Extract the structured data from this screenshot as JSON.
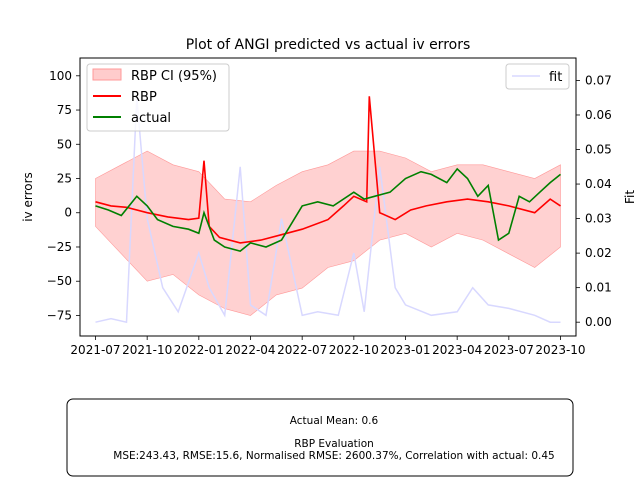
{
  "chart_data": {
    "type": "line",
    "title": "Plot of ANGI predicted vs actual iv errors",
    "ylabel_left": "iv errors",
    "ylabel_right": "Fit",
    "x_ticks": [
      "2021-07",
      "2021-10",
      "2022-01",
      "2022-04",
      "2022-07",
      "2022-10",
      "2023-01",
      "2023-04",
      "2023-07",
      "2023-10"
    ],
    "y_left_ticks": [
      -75,
      -50,
      -25,
      0,
      25,
      50,
      75,
      100
    ],
    "y_right_ticks": [
      "0.00",
      "0.01",
      "0.02",
      "0.03",
      "0.04",
      "0.05",
      "0.06",
      "0.07"
    ],
    "ylim_left": [
      -90,
      113
    ],
    "ylim_right": [
      -0.004,
      0.0765
    ],
    "xlim": [
      -0.3,
      9.3
    ],
    "legend_left": {
      "position": "upper left",
      "entries": [
        "RBP CI (95%)",
        "RBP",
        "actual"
      ]
    },
    "legend_right": {
      "position": "upper right",
      "entries": [
        "fit"
      ]
    },
    "colors": {
      "ci": "#ffcccc",
      "ci_edge": "#ff9999",
      "rbp": "#ff0000",
      "actual": "#008000",
      "fit": "#d8d8ff"
    },
    "series": [
      {
        "name": "RBP",
        "x": [
          0.0,
          0.3,
          0.6,
          1.0,
          1.4,
          1.8,
          2.0,
          2.1,
          2.2,
          2.4,
          2.8,
          3.2,
          3.6,
          4.0,
          4.5,
          4.8,
          5.0,
          5.25,
          5.3,
          5.5,
          5.8,
          6.1,
          6.4,
          6.8,
          7.2,
          7.6,
          8.0,
          8.5,
          8.8,
          9.0
        ],
        "values": [
          8,
          5,
          4,
          0,
          -3,
          -5,
          -4,
          38,
          -10,
          -18,
          -22,
          -20,
          -16,
          -12,
          -5,
          5,
          12,
          8,
          85,
          0,
          -5,
          2,
          5,
          8,
          10,
          8,
          5,
          0,
          10,
          5
        ]
      },
      {
        "name": "actual",
        "x": [
          0.0,
          0.25,
          0.5,
          0.8,
          1.0,
          1.2,
          1.5,
          1.8,
          2.0,
          2.1,
          2.3,
          2.5,
          2.8,
          3.0,
          3.3,
          3.6,
          4.0,
          4.3,
          4.6,
          5.0,
          5.2,
          5.4,
          5.7,
          6.0,
          6.3,
          6.5,
          6.8,
          7.0,
          7.2,
          7.4,
          7.6,
          7.8,
          8.0,
          8.2,
          8.4,
          8.6,
          8.8,
          9.0
        ],
        "values": [
          5,
          2,
          -2,
          12,
          5,
          -5,
          -10,
          -12,
          -15,
          0,
          -20,
          -25,
          -28,
          -22,
          -25,
          -20,
          5,
          8,
          5,
          15,
          10,
          12,
          15,
          25,
          30,
          28,
          22,
          32,
          25,
          12,
          20,
          -20,
          -15,
          12,
          8,
          15,
          22,
          28
        ]
      },
      {
        "name": "RBP CI (95%)",
        "x": [
          0.0,
          0.5,
          1.0,
          1.5,
          2.0,
          2.5,
          3.0,
          3.5,
          4.0,
          4.5,
          5.0,
          5.5,
          6.0,
          6.5,
          7.0,
          7.5,
          8.0,
          8.5,
          9.0
        ],
        "lower": [
          -10,
          -30,
          -50,
          -45,
          -60,
          -70,
          -75,
          -60,
          -55,
          -40,
          -35,
          -20,
          -15,
          -25,
          -15,
          -20,
          -30,
          -40,
          -25
        ],
        "upper": [
          25,
          35,
          45,
          35,
          30,
          10,
          8,
          20,
          30,
          35,
          45,
          45,
          40,
          30,
          35,
          35,
          30,
          25,
          35
        ]
      },
      {
        "name": "fit",
        "axis": "right",
        "x": [
          0.0,
          0.3,
          0.6,
          0.8,
          1.0,
          1.3,
          1.6,
          2.0,
          2.2,
          2.5,
          2.8,
          3.0,
          3.3,
          3.6,
          4.0,
          4.3,
          4.7,
          5.0,
          5.2,
          5.5,
          5.8,
          6.0,
          6.5,
          7.0,
          7.3,
          7.6,
          8.0,
          8.5,
          8.8,
          9.0
        ],
        "values": [
          0.0,
          0.001,
          0.0,
          0.065,
          0.03,
          0.01,
          0.003,
          0.02,
          0.01,
          0.002,
          0.045,
          0.005,
          0.002,
          0.03,
          0.002,
          0.003,
          0.002,
          0.02,
          0.003,
          0.045,
          0.01,
          0.005,
          0.002,
          0.003,
          0.01,
          0.005,
          0.004,
          0.002,
          0.0,
          0.0
        ]
      }
    ]
  },
  "footer": {
    "actual_mean": "Actual Mean: 0.6",
    "eval_title": "RBP Evaluation",
    "metrics": "MSE:243.43, RMSE:15.6, Normalised RMSE: 2600.37%, Correlation with actual: 0.45"
  }
}
